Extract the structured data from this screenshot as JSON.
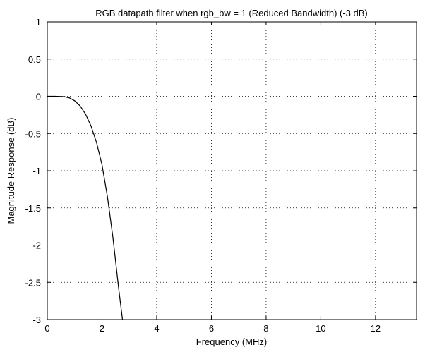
{
  "chart_data": {
    "type": "line",
    "title": "RGB datapath filter when rgb_bw = 1 (Reduced Bandwidth) (-3 dB)",
    "xlabel": "Frequency (MHz)",
    "ylabel": "Magnitude Response (dB)",
    "xlim": [
      0,
      13.5
    ],
    "ylim": [
      -3,
      1
    ],
    "xticks": [
      0,
      2,
      4,
      6,
      8,
      10,
      12
    ],
    "xtick_labels": [
      "0",
      "2",
      "4",
      "6",
      "8",
      "10",
      "12"
    ],
    "yticks": [
      1,
      0.5,
      0,
      -0.5,
      -1,
      -1.5,
      -2,
      -2.5,
      -3
    ],
    "ytick_labels": [
      "1",
      "0.5",
      "0",
      "-0.5",
      "-1",
      "-1.5",
      "-2",
      "-2.5",
      "-3"
    ],
    "grid": true,
    "series": [
      {
        "x": [
          0,
          0.3,
          0.6,
          0.8,
          1.0,
          1.2,
          1.4,
          1.6,
          1.8,
          2.0,
          2.2,
          2.4,
          2.6,
          2.75
        ],
        "y": [
          0,
          0,
          -0.005,
          -0.02,
          -0.06,
          -0.13,
          -0.24,
          -0.4,
          -0.62,
          -0.92,
          -1.35,
          -1.9,
          -2.55,
          -3.0
        ]
      }
    ],
    "colors": {
      "line": "#000000",
      "grid": "#000000",
      "axes": "#000000"
    }
  }
}
